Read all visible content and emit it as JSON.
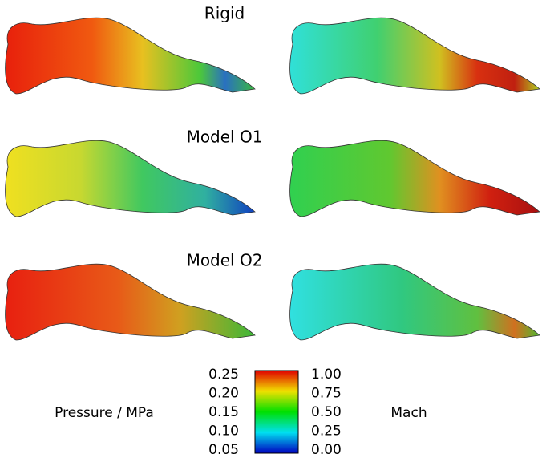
{
  "rows": [
    {
      "label": "Rigid"
    },
    {
      "label": "Model O1"
    },
    {
      "label": "Model O2"
    }
  ],
  "colorbar": {
    "left_label": "Pressure / MPa",
    "right_label": "Mach",
    "left_ticks": [
      "0.25",
      "0.20",
      "0.15",
      "0.10",
      "0.05"
    ],
    "right_ticks": [
      "1.00",
      "0.75",
      "0.50",
      "0.25",
      "0.00"
    ]
  }
}
